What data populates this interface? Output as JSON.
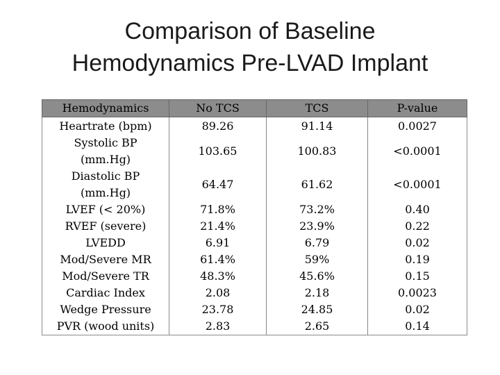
{
  "slide": {
    "title_line1": "Comparison of Baseline",
    "title_line2": "Hemodynamics Pre-LVAD Implant"
  },
  "table": {
    "headers": [
      "Hemodynamics",
      "No TCS",
      "TCS",
      "P-value"
    ],
    "rows": [
      {
        "label": "Heartrate (bpm)",
        "no_tcs": "89.26",
        "tcs": "91.14",
        "p": "0.0027"
      },
      {
        "label_line1": "Systolic BP",
        "label_line2": "(mm.Hg)",
        "no_tcs": "103.65",
        "tcs": "100.83",
        "p": "<0.0001"
      },
      {
        "label_line1": "Diastolic BP",
        "label_line2": "(mm.Hg)",
        "no_tcs": "64.47",
        "tcs": "61.62",
        "p": "<0.0001"
      },
      {
        "label": "LVEF (< 20%)",
        "no_tcs": "71.8%",
        "tcs": "73.2%",
        "p": "0.40"
      },
      {
        "label": "RVEF (severe)",
        "no_tcs": "21.4%",
        "tcs": "23.9%",
        "p": "0.22"
      },
      {
        "label": "LVEDD",
        "no_tcs": "6.91",
        "tcs": "6.79",
        "p": "0.02"
      },
      {
        "label": "Mod/Severe MR",
        "no_tcs": "61.4%",
        "tcs": "59%",
        "p": "0.19"
      },
      {
        "label": "Mod/Severe TR",
        "no_tcs": "48.3%",
        "tcs": "45.6%",
        "p": "0.15"
      },
      {
        "label": "Cardiac Index",
        "no_tcs": "2.08",
        "tcs": "2.18",
        "p": "0.0023"
      },
      {
        "label": "Wedge Pressure",
        "no_tcs": "23.78",
        "tcs": "24.85",
        "p": "0.02"
      },
      {
        "label": "PVR (wood units)",
        "no_tcs": "2.83",
        "tcs": "2.65",
        "p": "0.14"
      }
    ]
  },
  "colors": {
    "header_background": "#8c8c8c",
    "text": "#000000"
  }
}
